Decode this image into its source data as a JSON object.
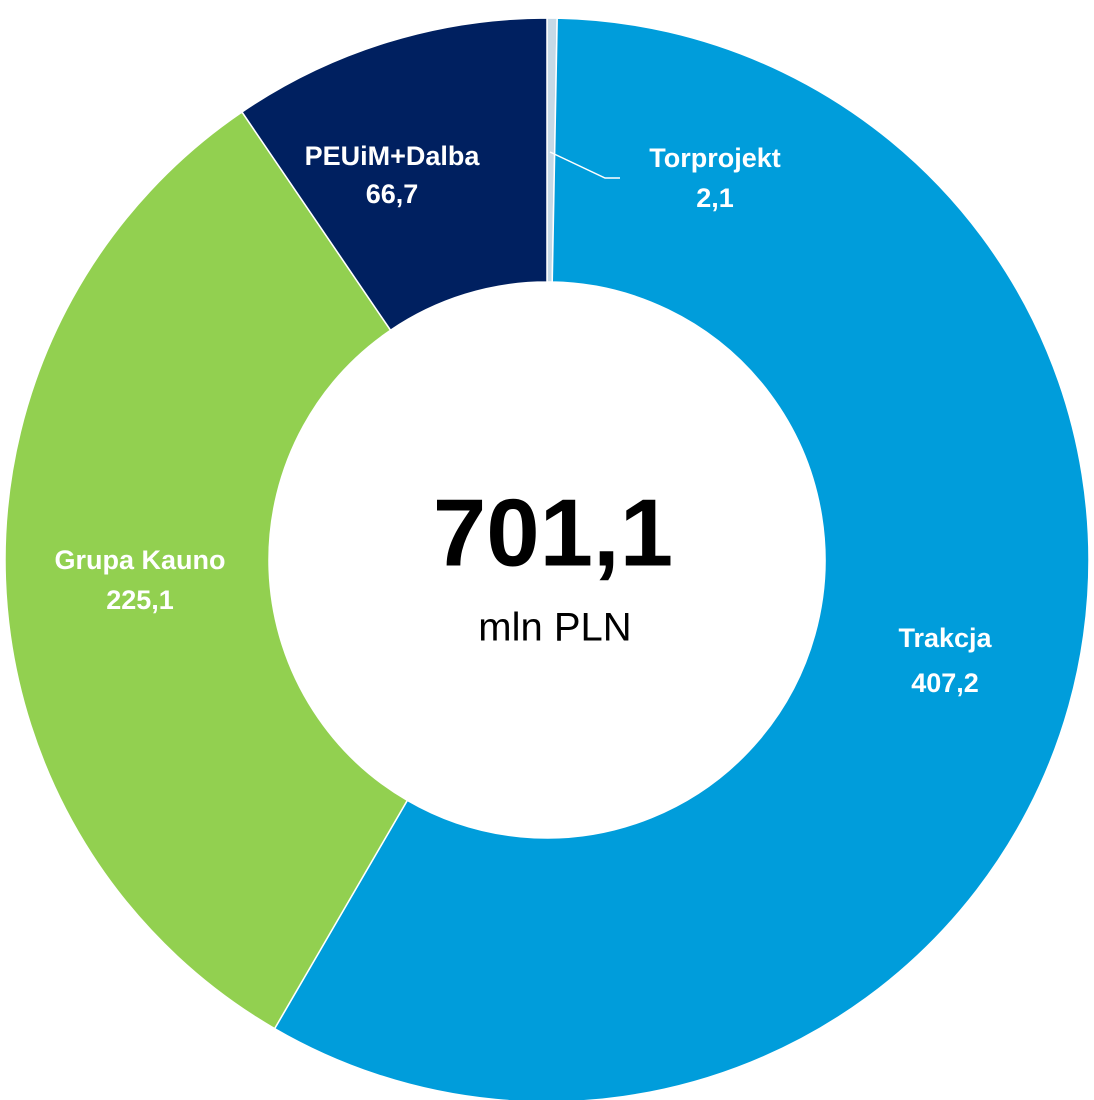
{
  "chart_data": {
    "type": "donut",
    "categories": [
      "Torprojekt",
      "Trakcja",
      "Grupa Kauno",
      "PEUiM+Dalba"
    ],
    "values": [
      2.1,
      407.2,
      225.1,
      66.7
    ],
    "value_labels": [
      "2,1",
      "407,2",
      "225,1",
      "66,7"
    ],
    "colors": [
      "#c6d9e6",
      "#009ddb",
      "#92d050",
      "#002060"
    ],
    "center_label": "701,1",
    "center_unit": "mln PLN"
  }
}
